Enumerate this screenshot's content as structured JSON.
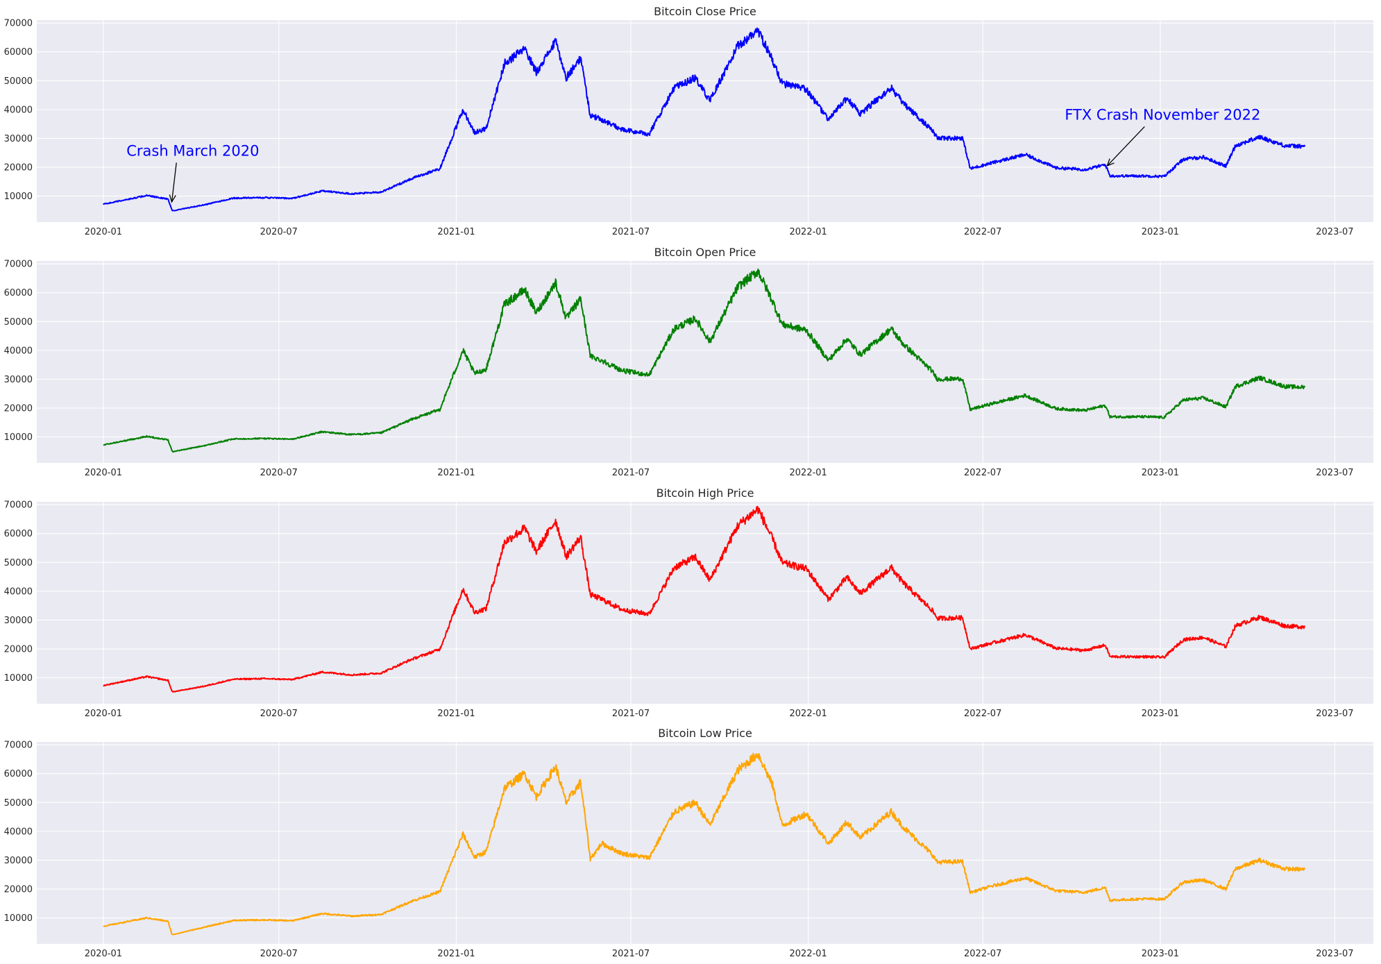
{
  "figure": {
    "background": "#ffffff",
    "axes_facecolor": "#eaeaf2",
    "grid": true,
    "grid_color": "#ffffff"
  },
  "chart_data": [
    {
      "type": "line",
      "title": "Bitcoin Close Price",
      "xlabel": "",
      "ylabel": "",
      "color": "#0000ff",
      "x_ticks": [
        "2020-01",
        "2020-07",
        "2021-01",
        "2021-07",
        "2022-01",
        "2022-07",
        "2023-01",
        "2023-07"
      ],
      "y_ticks": [
        "10000",
        "20000",
        "30000",
        "40000",
        "50000",
        "60000",
        "70000"
      ],
      "xlim": [
        "2019-10-24",
        "2023-08-10"
      ],
      "ylim": [
        1000,
        71000
      ],
      "x": [
        "2020-01-01",
        "2020-02-15",
        "2020-03-08",
        "2020-03-12",
        "2020-03-13",
        "2020-04-15",
        "2020-05-15",
        "2020-06-15",
        "2020-07-15",
        "2020-08-15",
        "2020-09-15",
        "2020-10-15",
        "2020-11-15",
        "2020-12-15",
        "2021-01-08",
        "2021-01-20",
        "2021-02-01",
        "2021-02-20",
        "2021-03-13",
        "2021-03-25",
        "2021-04-14",
        "2021-04-25",
        "2021-05-10",
        "2021-05-20",
        "2021-06-01",
        "2021-06-22",
        "2021-07-20",
        "2021-08-15",
        "2021-09-06",
        "2021-09-21",
        "2021-10-20",
        "2021-11-10",
        "2021-11-25",
        "2021-12-05",
        "2021-12-30",
        "2022-01-22",
        "2022-02-10",
        "2022-02-24",
        "2022-03-28",
        "2022-04-10",
        "2022-05-09",
        "2022-05-15",
        "2022-06-10",
        "2022-06-18",
        "2022-07-10",
        "2022-08-14",
        "2022-09-15",
        "2022-10-15",
        "2022-11-05",
        "2022-11-10",
        "2022-12-15",
        "2023-01-05",
        "2023-01-25",
        "2023-02-15",
        "2023-03-10",
        "2023-03-20",
        "2023-04-14",
        "2023-05-10",
        "2023-05-31"
      ],
      "y": [
        7200,
        10200,
        9000,
        5400,
        4900,
        7000,
        9300,
        9500,
        9200,
        11800,
        10800,
        11400,
        16000,
        19500,
        40000,
        32000,
        33500,
        56000,
        61000,
        53000,
        63500,
        51000,
        58000,
        38000,
        36500,
        33000,
        31500,
        47500,
        51000,
        43000,
        62000,
        67500,
        57000,
        49000,
        47000,
        36500,
        44000,
        38500,
        47500,
        42000,
        33000,
        30000,
        30200,
        19500,
        21500,
        24400,
        19800,
        19200,
        20900,
        17000,
        17000,
        16800,
        22800,
        23500,
        20400,
        27500,
        30500,
        27500,
        27200
      ],
      "annotations": [
        {
          "text": "Crash March 2020",
          "x": "2020-03-12",
          "y": 8000,
          "text_x": "2020-01-25",
          "text_y": 24000
        },
        {
          "text": "FTX Crash November 2022",
          "x": "2022-11-07",
          "y": 20500,
          "text_x": "2022-09-24",
          "text_y": 36500
        }
      ]
    },
    {
      "type": "line",
      "title": "Bitcoin Open Price",
      "xlabel": "",
      "ylabel": "",
      "color": "#008000",
      "x_ticks": [
        "2020-01",
        "2020-07",
        "2021-01",
        "2021-07",
        "2022-01",
        "2022-07",
        "2023-01",
        "2023-07"
      ],
      "y_ticks": [
        "10000",
        "20000",
        "30000",
        "40000",
        "50000",
        "60000",
        "70000"
      ],
      "xlim": [
        "2019-10-24",
        "2023-08-10"
      ],
      "ylim": [
        1000,
        71000
      ],
      "x": [
        "2020-01-01",
        "2020-02-15",
        "2020-03-08",
        "2020-03-12",
        "2020-03-13",
        "2020-04-15",
        "2020-05-15",
        "2020-06-15",
        "2020-07-15",
        "2020-08-15",
        "2020-09-15",
        "2020-10-15",
        "2020-11-15",
        "2020-12-15",
        "2021-01-08",
        "2021-01-20",
        "2021-02-01",
        "2021-02-20",
        "2021-03-13",
        "2021-03-25",
        "2021-04-14",
        "2021-04-25",
        "2021-05-10",
        "2021-05-20",
        "2021-06-01",
        "2021-06-22",
        "2021-07-20",
        "2021-08-15",
        "2021-09-06",
        "2021-09-21",
        "2021-10-20",
        "2021-11-10",
        "2021-11-25",
        "2021-12-05",
        "2021-12-30",
        "2022-01-22",
        "2022-02-10",
        "2022-02-24",
        "2022-03-28",
        "2022-04-10",
        "2022-05-09",
        "2022-05-15",
        "2022-06-10",
        "2022-06-18",
        "2022-07-10",
        "2022-08-14",
        "2022-09-15",
        "2022-10-15",
        "2022-11-05",
        "2022-11-10",
        "2022-12-15",
        "2023-01-05",
        "2023-01-25",
        "2023-02-15",
        "2023-03-10",
        "2023-03-20",
        "2023-04-14",
        "2023-05-10",
        "2023-05-31"
      ],
      "y": [
        7200,
        10200,
        9000,
        5400,
        4900,
        7000,
        9300,
        9500,
        9200,
        11800,
        10800,
        11400,
        16000,
        19500,
        40000,
        32000,
        33500,
        56000,
        61000,
        53000,
        63500,
        51000,
        58000,
        38000,
        36500,
        33000,
        31500,
        47500,
        51000,
        43000,
        62000,
        67500,
        57000,
        49000,
        47000,
        36500,
        44000,
        38500,
        47500,
        42000,
        33000,
        30000,
        30200,
        19500,
        21500,
        24400,
        19800,
        19200,
        20900,
        17000,
        17000,
        16800,
        22800,
        23500,
        20400,
        27500,
        30500,
        27500,
        27200
      ]
    },
    {
      "type": "line",
      "title": "Bitcoin High Price",
      "xlabel": "",
      "ylabel": "",
      "color": "#ff0000",
      "x_ticks": [
        "2020-01",
        "2020-07",
        "2021-01",
        "2021-07",
        "2022-01",
        "2022-07",
        "2023-01",
        "2023-07"
      ],
      "y_ticks": [
        "10000",
        "20000",
        "30000",
        "40000",
        "50000",
        "60000",
        "70000"
      ],
      "xlim": [
        "2019-10-24",
        "2023-08-10"
      ],
      "ylim": [
        1000,
        71000
      ],
      "x": [
        "2020-01-01",
        "2020-02-15",
        "2020-03-08",
        "2020-03-12",
        "2020-03-13",
        "2020-04-15",
        "2020-05-15",
        "2020-06-15",
        "2020-07-15",
        "2020-08-15",
        "2020-09-15",
        "2020-10-15",
        "2020-11-15",
        "2020-12-15",
        "2021-01-08",
        "2021-01-20",
        "2021-02-01",
        "2021-02-20",
        "2021-03-13",
        "2021-03-25",
        "2021-04-14",
        "2021-04-25",
        "2021-05-10",
        "2021-05-20",
        "2021-06-01",
        "2021-06-22",
        "2021-07-20",
        "2021-08-15",
        "2021-09-06",
        "2021-09-21",
        "2021-10-20",
        "2021-11-10",
        "2021-11-25",
        "2021-12-05",
        "2021-12-30",
        "2022-01-22",
        "2022-02-10",
        "2022-02-24",
        "2022-03-28",
        "2022-04-10",
        "2022-05-09",
        "2022-05-15",
        "2022-06-10",
        "2022-06-18",
        "2022-07-10",
        "2022-08-14",
        "2022-09-15",
        "2022-10-15",
        "2022-11-05",
        "2022-11-10",
        "2022-12-15",
        "2023-01-05",
        "2023-01-25",
        "2023-02-15",
        "2023-03-10",
        "2023-03-20",
        "2023-04-14",
        "2023-05-10",
        "2023-05-31"
      ],
      "y": [
        7300,
        10400,
        9100,
        5600,
        5100,
        7100,
        9500,
        9700,
        9400,
        12000,
        11000,
        11600,
        16300,
        19900,
        40800,
        32600,
        34000,
        57000,
        61800,
        53800,
        64500,
        52000,
        58800,
        38800,
        37200,
        33600,
        32100,
        48200,
        51800,
        43800,
        62800,
        68500,
        58000,
        49800,
        47800,
        37200,
        44800,
        39200,
        48200,
        42700,
        33600,
        30600,
        30800,
        20000,
        22000,
        24900,
        20200,
        19500,
        21300,
        17300,
        17300,
        17100,
        23200,
        24000,
        20800,
        28000,
        31000,
        28000,
        27600
      ]
    },
    {
      "type": "line",
      "title": "Bitcoin Low Price",
      "xlabel": "",
      "ylabel": "",
      "color": "#ffa500",
      "x_ticks": [
        "2020-01",
        "2020-07",
        "2021-01",
        "2021-07",
        "2022-01",
        "2022-07",
        "2023-01",
        "2023-07"
      ],
      "y_ticks": [
        "10000",
        "20000",
        "30000",
        "40000",
        "50000",
        "60000",
        "70000"
      ],
      "xlim": [
        "2019-10-24",
        "2023-08-10"
      ],
      "ylim": [
        1000,
        71000
      ],
      "x": [
        "2020-01-01",
        "2020-02-15",
        "2020-03-08",
        "2020-03-12",
        "2020-03-13",
        "2020-04-15",
        "2020-05-15",
        "2020-06-15",
        "2020-07-15",
        "2020-08-15",
        "2020-09-15",
        "2020-10-15",
        "2020-11-15",
        "2020-12-15",
        "2021-01-08",
        "2021-01-20",
        "2021-02-01",
        "2021-02-20",
        "2021-03-13",
        "2021-03-25",
        "2021-04-14",
        "2021-04-25",
        "2021-05-10",
        "2021-05-20",
        "2021-06-01",
        "2021-06-22",
        "2021-07-20",
        "2021-08-15",
        "2021-09-06",
        "2021-09-21",
        "2021-10-20",
        "2021-11-10",
        "2021-11-25",
        "2021-12-05",
        "2021-12-30",
        "2022-01-22",
        "2022-02-10",
        "2022-02-24",
        "2022-03-28",
        "2022-04-10",
        "2022-05-09",
        "2022-05-15",
        "2022-06-10",
        "2022-06-18",
        "2022-07-10",
        "2022-08-14",
        "2022-09-15",
        "2022-10-15",
        "2022-11-05",
        "2022-11-10",
        "2022-12-15",
        "2023-01-05",
        "2023-01-25",
        "2023-02-15",
        "2023-03-10",
        "2023-03-20",
        "2023-04-14",
        "2023-05-10",
        "2023-05-31"
      ],
      "y": [
        7100,
        10000,
        8800,
        4500,
        4200,
        6800,
        9100,
        9300,
        9000,
        11500,
        10600,
        11200,
        15700,
        19100,
        39000,
        31000,
        33000,
        55000,
        60000,
        52000,
        62500,
        50000,
        57000,
        30500,
        35800,
        32300,
        30800,
        46800,
        50000,
        42200,
        61200,
        66800,
        56000,
        42000,
        46200,
        35800,
        43200,
        37800,
        46800,
        41300,
        32200,
        29300,
        29500,
        18800,
        21000,
        23800,
        19400,
        18900,
        20500,
        16100,
        16600,
        16500,
        22400,
        23100,
        20000,
        27000,
        30000,
        27000,
        26800
      ]
    }
  ]
}
